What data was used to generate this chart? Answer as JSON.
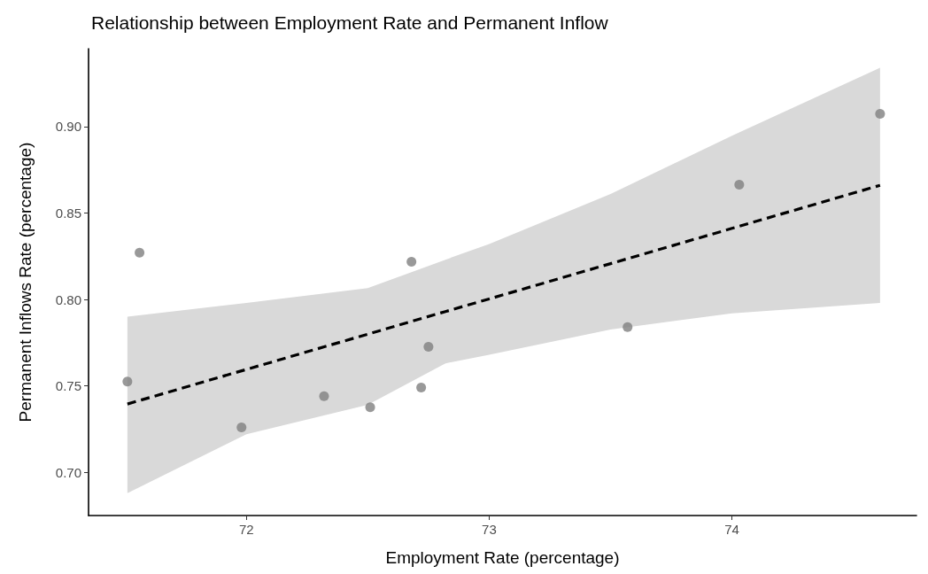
{
  "chart_data": {
    "type": "scatter",
    "title": "Relationship between Employment Rate and Permanent Inflow",
    "xlabel": "Employment Rate (percentage)",
    "ylabel": "Permanent Inflows Rate (percentage)",
    "xlim": [
      71.35,
      74.76
    ],
    "xticks": [
      72,
      73,
      74
    ],
    "ylim": [
      0.675,
      0.945
    ],
    "yticks": [
      {
        "value": 0.7,
        "label": "0.70"
      },
      0.75,
      {
        "value": 0.8,
        "label": "0.80"
      },
      0.85,
      {
        "value": 0.9,
        "label": "0.90"
      }
    ],
    "grid": false,
    "marker": "circle",
    "series": [
      {
        "color": "#808080",
        "x": [
          71.51,
          71.56,
          71.98,
          72.32,
          72.51,
          72.68,
          72.72,
          72.75,
          73.57,
          74.03,
          74.61
        ],
        "values": [
          0.7525,
          0.827,
          0.726,
          0.744,
          0.7376,
          0.8218,
          0.749,
          0.7726,
          0.784,
          0.8664,
          0.9073
        ]
      },
      {
        "type": "line",
        "color": "#000000",
        "line_style": "dashed",
        "marker": "none",
        "x": [
          71.51,
          72,
          72.5,
          72.82,
          73,
          73.5,
          74,
          74.61
        ],
        "values": [
          0.7395,
          0.7595,
          0.7799,
          0.793,
          0.8003,
          0.8207,
          0.8411,
          0.866
        ],
        "lower": [
          0.688,
          0.722,
          0.739,
          0.763,
          0.768,
          0.7826,
          0.792,
          0.798
        ],
        "upper": [
          0.79,
          0.798,
          0.8066,
          0.823,
          0.832,
          0.861,
          0.8947,
          0.934
        ]
      }
    ]
  }
}
